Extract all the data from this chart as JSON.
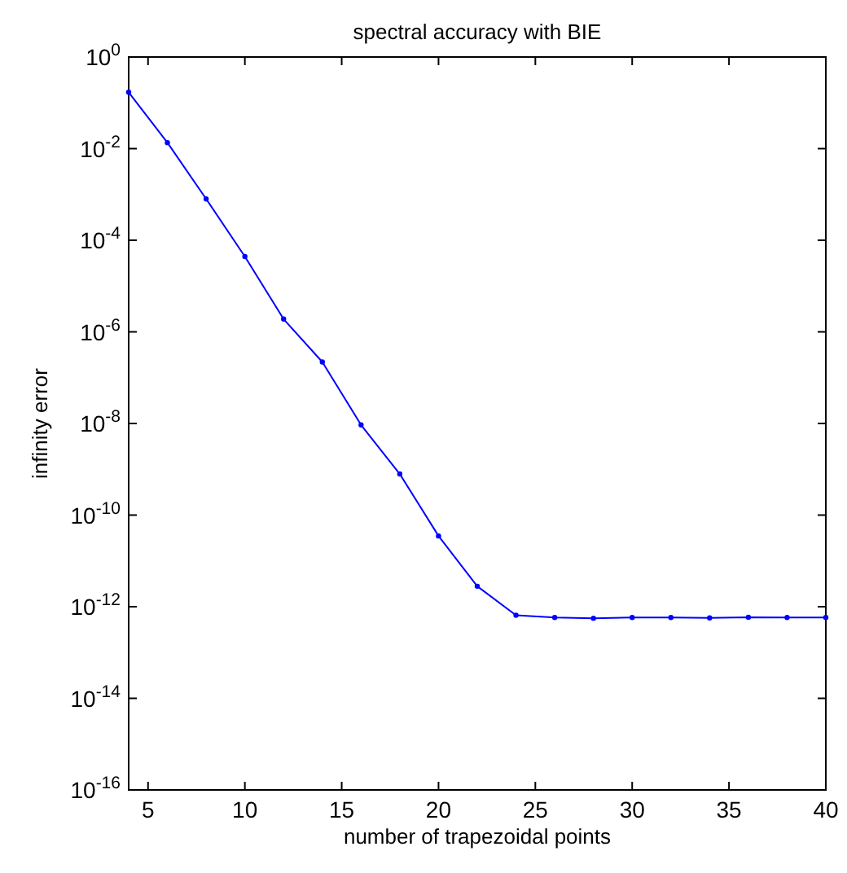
{
  "chart_data": {
    "type": "line",
    "title": "spectral accuracy with BIE",
    "xlabel": "number of trapezoidal points",
    "ylabel": "infinity error",
    "x": [
      4,
      6,
      8,
      10,
      12,
      14,
      16,
      18,
      20,
      22,
      24,
      26,
      28,
      30,
      32,
      34,
      36,
      38,
      40
    ],
    "series": [
      {
        "color": "#0000ff",
        "values": [
          0.17,
          0.0135,
          0.0008,
          4.4e-05,
          1.9e-06,
          2.2e-07,
          9.3e-09,
          7.9e-10,
          3.5e-11,
          2.8e-12,
          6.5e-13,
          5.8e-13,
          5.6e-13,
          5.8e-13,
          5.8e-13,
          5.7e-13,
          5.9e-13,
          5.8e-13,
          5.8e-13
        ]
      }
    ],
    "log": "y",
    "marker": "circle",
    "line_style": "solid",
    "grid": false,
    "xlim": [
      4,
      40
    ],
    "xticks": [
      5,
      10,
      15,
      20,
      25,
      30,
      35,
      40
    ],
    "ylim": [
      1e-16,
      1
    ],
    "yticks": [
      {
        "value": 1e-16,
        "label": "10$^{-16}$"
      },
      {
        "value": 1e-14,
        "label": "10$^{-14}$"
      },
      {
        "value": 1e-12,
        "label": "10$^{-12}$"
      },
      {
        "value": 1e-10,
        "label": "10$^{-10}$"
      },
      {
        "value": 1e-08,
        "label": "10$^{-8}$"
      },
      {
        "value": 1e-06,
        "label": "10$^{-6}$"
      },
      {
        "value": 0.0001,
        "label": "10$^{-4}$"
      },
      {
        "value": 0.01,
        "label": "10$^{-2}$"
      },
      {
        "value": 1,
        "label": "10$^{0}$"
      }
    ]
  }
}
